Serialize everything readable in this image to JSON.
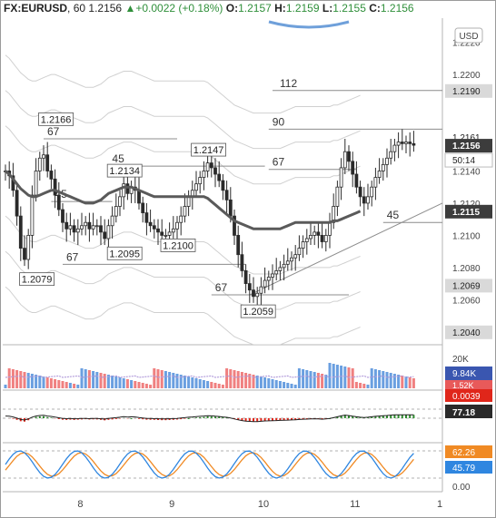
{
  "header": {
    "symbol": "FX:EURUSD",
    "interval": "60",
    "last": "1.2156",
    "change": "+0.0022 (+0.18%)",
    "open_label": "O:",
    "open": "1.2157",
    "high_label": "H:",
    "high": "1.2159",
    "low_label": "L:",
    "low": "1.2155",
    "close_label": "C:",
    "close": "1.2156"
  },
  "colors": {
    "up": "#26a69a",
    "down": "#ef5350",
    "candle": "#2a2a2a",
    "ma": "#5a5a5a",
    "line_gray": "#9a9a9a",
    "vol_blue": "#6a9fe0",
    "vol_red": "#f08080",
    "macd_green": "#2e8b2e",
    "macd_red": "#e0261a",
    "stoch_blue": "#2f86e0",
    "stoch_orange": "#f08a24"
  },
  "chart_data": {
    "type": "candlestick",
    "currency": "USD",
    "y_range": [
      1.2032,
      1.2235
    ],
    "price_ticks": [
      "1.2220",
      "1.2200",
      "1.2190",
      "1.2161",
      "1.2156",
      "1.2140",
      "1.2120",
      "1.2115",
      "1.2100",
      "1.2080",
      "1.2069",
      "1.2060",
      "1.2040"
    ],
    "x_ticks": [
      {
        "label": "8",
        "t": 22
      },
      {
        "label": "9",
        "t": 46
      },
      {
        "label": "10",
        "t": 70
      },
      {
        "label": "11",
        "t": 94
      },
      {
        "label": "1",
        "t": 118
      }
    ],
    "close_series": [
      1.214,
      1.2137,
      1.2128,
      1.2112,
      1.2092,
      1.2085,
      1.21,
      1.2125,
      1.214,
      1.2148,
      1.215,
      1.214,
      1.2135,
      1.2125,
      1.2116,
      1.2108,
      1.2104,
      1.2106,
      1.2102,
      1.2104,
      1.2106,
      1.2108,
      1.2104,
      1.2106,
      1.2106,
      1.2102,
      1.2098,
      1.2106,
      1.2112,
      1.2118,
      1.2124,
      1.2132,
      1.2126,
      1.213,
      1.2128,
      1.212,
      1.2114,
      1.2108,
      1.2106,
      1.2104,
      1.2102,
      1.21,
      1.21,
      1.2102,
      1.2104,
      1.2108,
      1.2112,
      1.2118,
      1.2124,
      1.2128,
      1.2132,
      1.2136,
      1.214,
      1.2145,
      1.2142,
      1.2138,
      1.2134,
      1.2128,
      1.2122,
      1.2112,
      1.21,
      1.2088,
      1.2078,
      1.207,
      1.2066,
      1.2062,
      1.2064,
      1.2068,
      1.2072,
      1.2074,
      1.2076,
      1.2078,
      1.208,
      1.2082,
      1.2084,
      1.2086,
      1.2088,
      1.2092,
      1.2096,
      1.2098,
      1.21,
      1.2102,
      1.21,
      1.2096,
      1.21,
      1.2108,
      1.2118,
      1.213,
      1.2142,
      1.2152,
      1.2146,
      1.2138,
      1.213,
      1.2124,
      1.212,
      1.2124,
      1.213,
      1.2136,
      1.214,
      1.2144,
      1.2148,
      1.2152,
      1.2156,
      1.2158,
      1.2157,
      1.2158,
      1.2157,
      1.2156
    ],
    "ma_series": [
      1.214,
      1.2138,
      1.2135,
      1.2132,
      1.2129,
      1.2127,
      1.2125,
      1.2124,
      1.2124,
      1.2125,
      1.2126,
      1.2127,
      1.2128,
      1.2128,
      1.2127,
      1.2126,
      1.2125,
      1.2124,
      1.2123,
      1.2122,
      1.2121,
      1.212,
      1.212,
      1.212,
      1.2121,
      1.2122,
      1.2124,
      1.2126,
      1.2127,
      1.2128,
      1.2129,
      1.213,
      1.213,
      1.213,
      1.2129,
      1.2128,
      1.2127,
      1.2126,
      1.2125,
      1.2124,
      1.2124,
      1.2124,
      1.2124,
      1.2124,
      1.2124,
      1.2124,
      1.2124,
      1.2124,
      1.2124,
      1.2124,
      1.2124,
      1.2124,
      1.2124,
      1.2123,
      1.2121,
      1.2119,
      1.2117,
      1.2115,
      1.2113,
      1.2111,
      1.2109,
      1.2108,
      1.2107,
      1.2106,
      1.2105,
      1.2104,
      1.2104,
      1.2104,
      1.2104,
      1.2104,
      1.2104,
      1.2104,
      1.2104,
      1.2105,
      1.2106,
      1.2107,
      1.2108,
      1.2108,
      1.2108,
      1.2108,
      1.2108,
      1.2108,
      1.2108,
      1.2108,
      1.2108,
      1.2108,
      1.2109,
      1.2109,
      1.211,
      1.2111,
      1.2112,
      1.2113,
      1.2114,
      1.2115
    ],
    "level_lines": [
      {
        "label": "112",
        "price": 1.219,
        "t0": 70,
        "t1": 118
      },
      {
        "label": "90",
        "price": 1.2166,
        "t0": 69,
        "t1": 118
      },
      {
        "label": "67",
        "price": 1.216,
        "t0": 10,
        "t1": 45
      },
      {
        "label": "45",
        "price": 1.2143,
        "t0": 27,
        "t1": 68
      },
      {
        "label": "67",
        "price": 1.2141,
        "t0": 69,
        "t1": 92
      },
      {
        "label": "45",
        "price": 1.2121,
        "t0": 12,
        "t1": 28
      },
      {
        "label": "45",
        "price": 1.2108,
        "t0": 99,
        "t1": 118
      },
      {
        "label": "67",
        "price": 1.2082,
        "t0": 15,
        "t1": 63
      },
      {
        "label": "67",
        "price": 1.2063,
        "t0": 54,
        "t1": 90
      }
    ],
    "trendline": {
      "t0": 64,
      "p0": 1.2063,
      "t1": 118,
      "p1": 1.212
    },
    "annotations": [
      {
        "label": "1.2166",
        "price": 1.2166,
        "t": 13
      },
      {
        "label": "1.2147",
        "price": 1.2147,
        "t": 53
      },
      {
        "label": "1.2134",
        "price": 1.2134,
        "t": 31
      },
      {
        "label": "1.2095",
        "price": 1.2095,
        "t": 31
      },
      {
        "label": "1.2100",
        "price": 1.21,
        "t": 45
      },
      {
        "label": "1.2079",
        "price": 1.2079,
        "t": 8
      },
      {
        "label": "1.2059",
        "price": 1.2059,
        "t": 66
      }
    ],
    "price_boxes": [
      {
        "label": "1.2190",
        "price": 1.219,
        "style": "gray"
      },
      {
        "label": "1.2161",
        "price": 1.2161,
        "style": "plain"
      },
      {
        "label": "1.2156",
        "price": 1.2156,
        "style": "dark"
      },
      {
        "label": "50:14",
        "price": 1.2147,
        "style": "light"
      },
      {
        "label": "1.2115",
        "price": 1.2115,
        "style": "dark"
      },
      {
        "label": "1.2069",
        "price": 1.2069,
        "style": "gray"
      },
      {
        "label": "1.2040",
        "price": 1.204,
        "style": "gray"
      }
    ],
    "volume": {
      "axis_label": "20K",
      "value": "9.84K",
      "value_secondary": "1.52K"
    },
    "macd": {
      "value": "0.0039",
      "signal": "77.18"
    },
    "stochastic": {
      "k": "62.26",
      "d": "45.79",
      "axis_min": "0.00"
    }
  }
}
